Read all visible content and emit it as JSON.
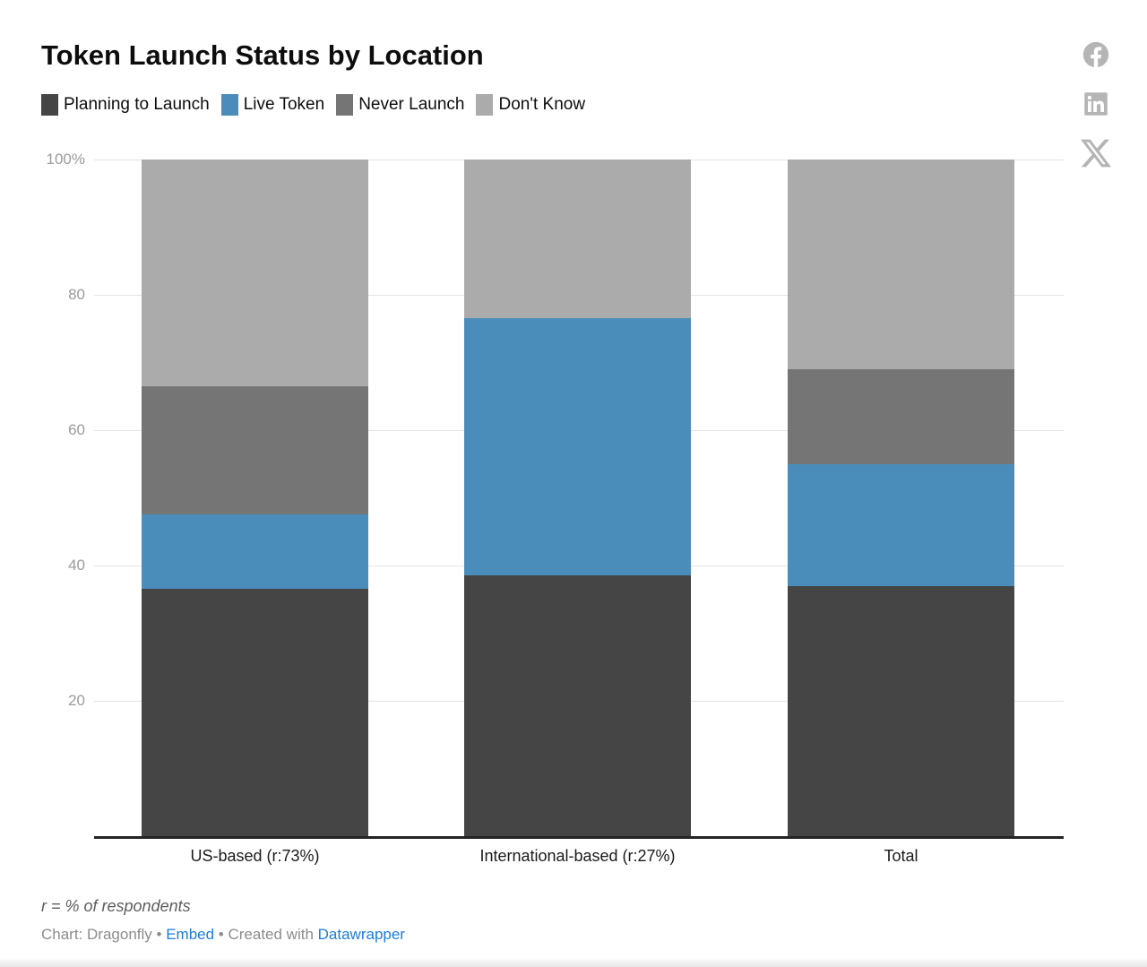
{
  "title": "Token Launch Status by Location",
  "legend": [
    {
      "label": "Planning to Launch",
      "color": "#454545"
    },
    {
      "label": "Live Token",
      "color": "#4a8dbb"
    },
    {
      "label": "Never Launch",
      "color": "#757575"
    },
    {
      "label": "Don't Know",
      "color": "#ababab"
    }
  ],
  "chart_data": {
    "type": "bar",
    "stacked": true,
    "title": "Token Launch Status by Location",
    "categories": [
      "US-based (r:73%)",
      "International-based (r:27%)",
      "Total"
    ],
    "series": [
      {
        "name": "Planning to Launch",
        "color": "#454545",
        "values": [
          36.5,
          38.5,
          37
        ]
      },
      {
        "name": "Live Token",
        "color": "#4a8dbb",
        "values": [
          11,
          38,
          18
        ]
      },
      {
        "name": "Never Launch",
        "color": "#757575",
        "values": [
          19,
          0,
          14
        ]
      },
      {
        "name": "Don't Know",
        "color": "#ababab",
        "values": [
          33.5,
          23.5,
          31
        ]
      }
    ],
    "unit": "%",
    "ylim": [
      0,
      100
    ],
    "y_ticks": [
      {
        "value": 100,
        "label": "100%"
      },
      {
        "value": 80,
        "label": "80"
      },
      {
        "value": 60,
        "label": "60"
      },
      {
        "value": 40,
        "label": "40"
      },
      {
        "value": 20,
        "label": "20"
      }
    ],
    "grid": true,
    "legend_position": "top"
  },
  "footnote": "r = % of respondents",
  "attribution": {
    "prefix": "Chart: Dragonfly",
    "separator": " • ",
    "embed_label": "Embed",
    "created_with": "Created with ",
    "datawrapper_label": "Datawrapper"
  },
  "social": [
    {
      "name": "facebook"
    },
    {
      "name": "linkedin"
    },
    {
      "name": "x"
    }
  ],
  "colors": {
    "link_blue": "#1d7edb",
    "gridline": "#e4e4e4",
    "axis_line": "#242424",
    "y_tick_text": "#9b9b9b",
    "x_tick_text": "#1a1a1a",
    "social_icon": "#b5b5b5",
    "footnote_text": "#5d5d5d",
    "attribution_text": "#8c8c8c"
  }
}
